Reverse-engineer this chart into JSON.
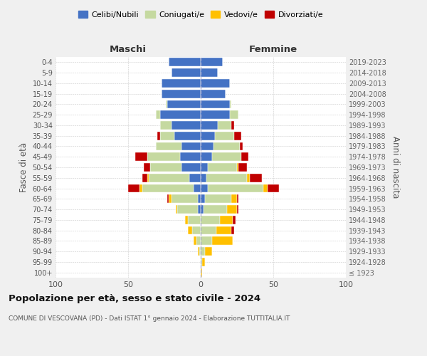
{
  "age_groups": [
    "100+",
    "95-99",
    "90-94",
    "85-89",
    "80-84",
    "75-79",
    "70-74",
    "65-69",
    "60-64",
    "55-59",
    "50-54",
    "45-49",
    "40-44",
    "35-39",
    "30-34",
    "25-29",
    "20-24",
    "15-19",
    "10-14",
    "5-9",
    "0-4"
  ],
  "birth_years": [
    "≤ 1923",
    "1924-1928",
    "1929-1933",
    "1934-1938",
    "1939-1943",
    "1944-1948",
    "1949-1953",
    "1954-1958",
    "1959-1963",
    "1964-1968",
    "1969-1973",
    "1974-1978",
    "1979-1983",
    "1984-1988",
    "1989-1993",
    "1994-1998",
    "1999-2003",
    "2004-2008",
    "2009-2013",
    "2014-2018",
    "2019-2023"
  ],
  "maschi": {
    "celibi": [
      0,
      0,
      0,
      0,
      0,
      0,
      2,
      2,
      5,
      8,
      13,
      14,
      13,
      18,
      20,
      28,
      23,
      27,
      27,
      20,
      22
    ],
    "coniugati": [
      0,
      0,
      1,
      3,
      6,
      9,
      14,
      18,
      35,
      28,
      22,
      23,
      18,
      10,
      8,
      3,
      1,
      0,
      0,
      0,
      0
    ],
    "vedovi": [
      0,
      0,
      1,
      2,
      3,
      2,
      1,
      2,
      2,
      1,
      0,
      0,
      0,
      0,
      0,
      0,
      0,
      0,
      0,
      0,
      0
    ],
    "divorziati": [
      0,
      0,
      0,
      0,
      0,
      0,
      0,
      1,
      8,
      3,
      4,
      8,
      0,
      2,
      0,
      0,
      0,
      0,
      0,
      0,
      0
    ]
  },
  "femmine": {
    "nubili": [
      0,
      0,
      0,
      0,
      0,
      0,
      2,
      3,
      5,
      4,
      5,
      8,
      9,
      10,
      12,
      20,
      20,
      17,
      20,
      12,
      15
    ],
    "coniugate": [
      0,
      1,
      3,
      8,
      11,
      13,
      16,
      18,
      38,
      28,
      20,
      20,
      18,
      13,
      9,
      6,
      1,
      0,
      0,
      0,
      0
    ],
    "vedove": [
      1,
      2,
      5,
      14,
      10,
      9,
      7,
      4,
      3,
      2,
      1,
      0,
      0,
      0,
      0,
      0,
      0,
      0,
      0,
      0,
      0
    ],
    "divorziate": [
      0,
      0,
      0,
      0,
      2,
      2,
      1,
      1,
      8,
      8,
      6,
      5,
      2,
      5,
      2,
      0,
      0,
      0,
      0,
      0,
      0
    ]
  },
  "colors": {
    "celibi": "#4472c4",
    "coniugati": "#c5d9a0",
    "vedovi": "#ffc000",
    "divorziati": "#c00000"
  },
  "title": "Popolazione per età, sesso e stato civile - 2024",
  "subtitle": "COMUNE DI VESCOVANA (PD) - Dati ISTAT 1° gennaio 2024 - Elaborazione TUTTITALIA.IT",
  "xlabel_left": "Maschi",
  "xlabel_right": "Femmine",
  "ylabel_left": "Fasce di età",
  "ylabel_right": "Anni di nascita",
  "xlim": 100,
  "background_color": "#f0f0f0",
  "plot_bg": "#ffffff",
  "legend_labels": [
    "Celibi/Nubili",
    "Coniugati/e",
    "Vedovi/e",
    "Divorziati/e"
  ]
}
